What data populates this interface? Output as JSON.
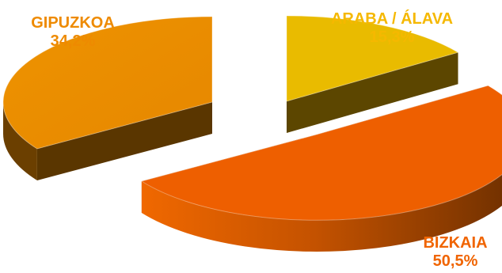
{
  "chart_data": {
    "type": "pie",
    "style": "3d-exploded",
    "slices": [
      {
        "label": "ARABA / ÁLAVA",
        "value": 15.3,
        "value_label": "15,3%",
        "color": "#E9BB00",
        "label_color": "#F5B800"
      },
      {
        "label": "BIZKAIA",
        "value": 50.5,
        "value_label": "50,5%",
        "color": "#EE5F00",
        "label_color": "#F06400"
      },
      {
        "label": "GIPUZKOA",
        "value": 34.2,
        "value_label": "34,2%",
        "color": "#EC8F00",
        "label_color": "#EE8A00"
      }
    ],
    "legend": "none"
  }
}
